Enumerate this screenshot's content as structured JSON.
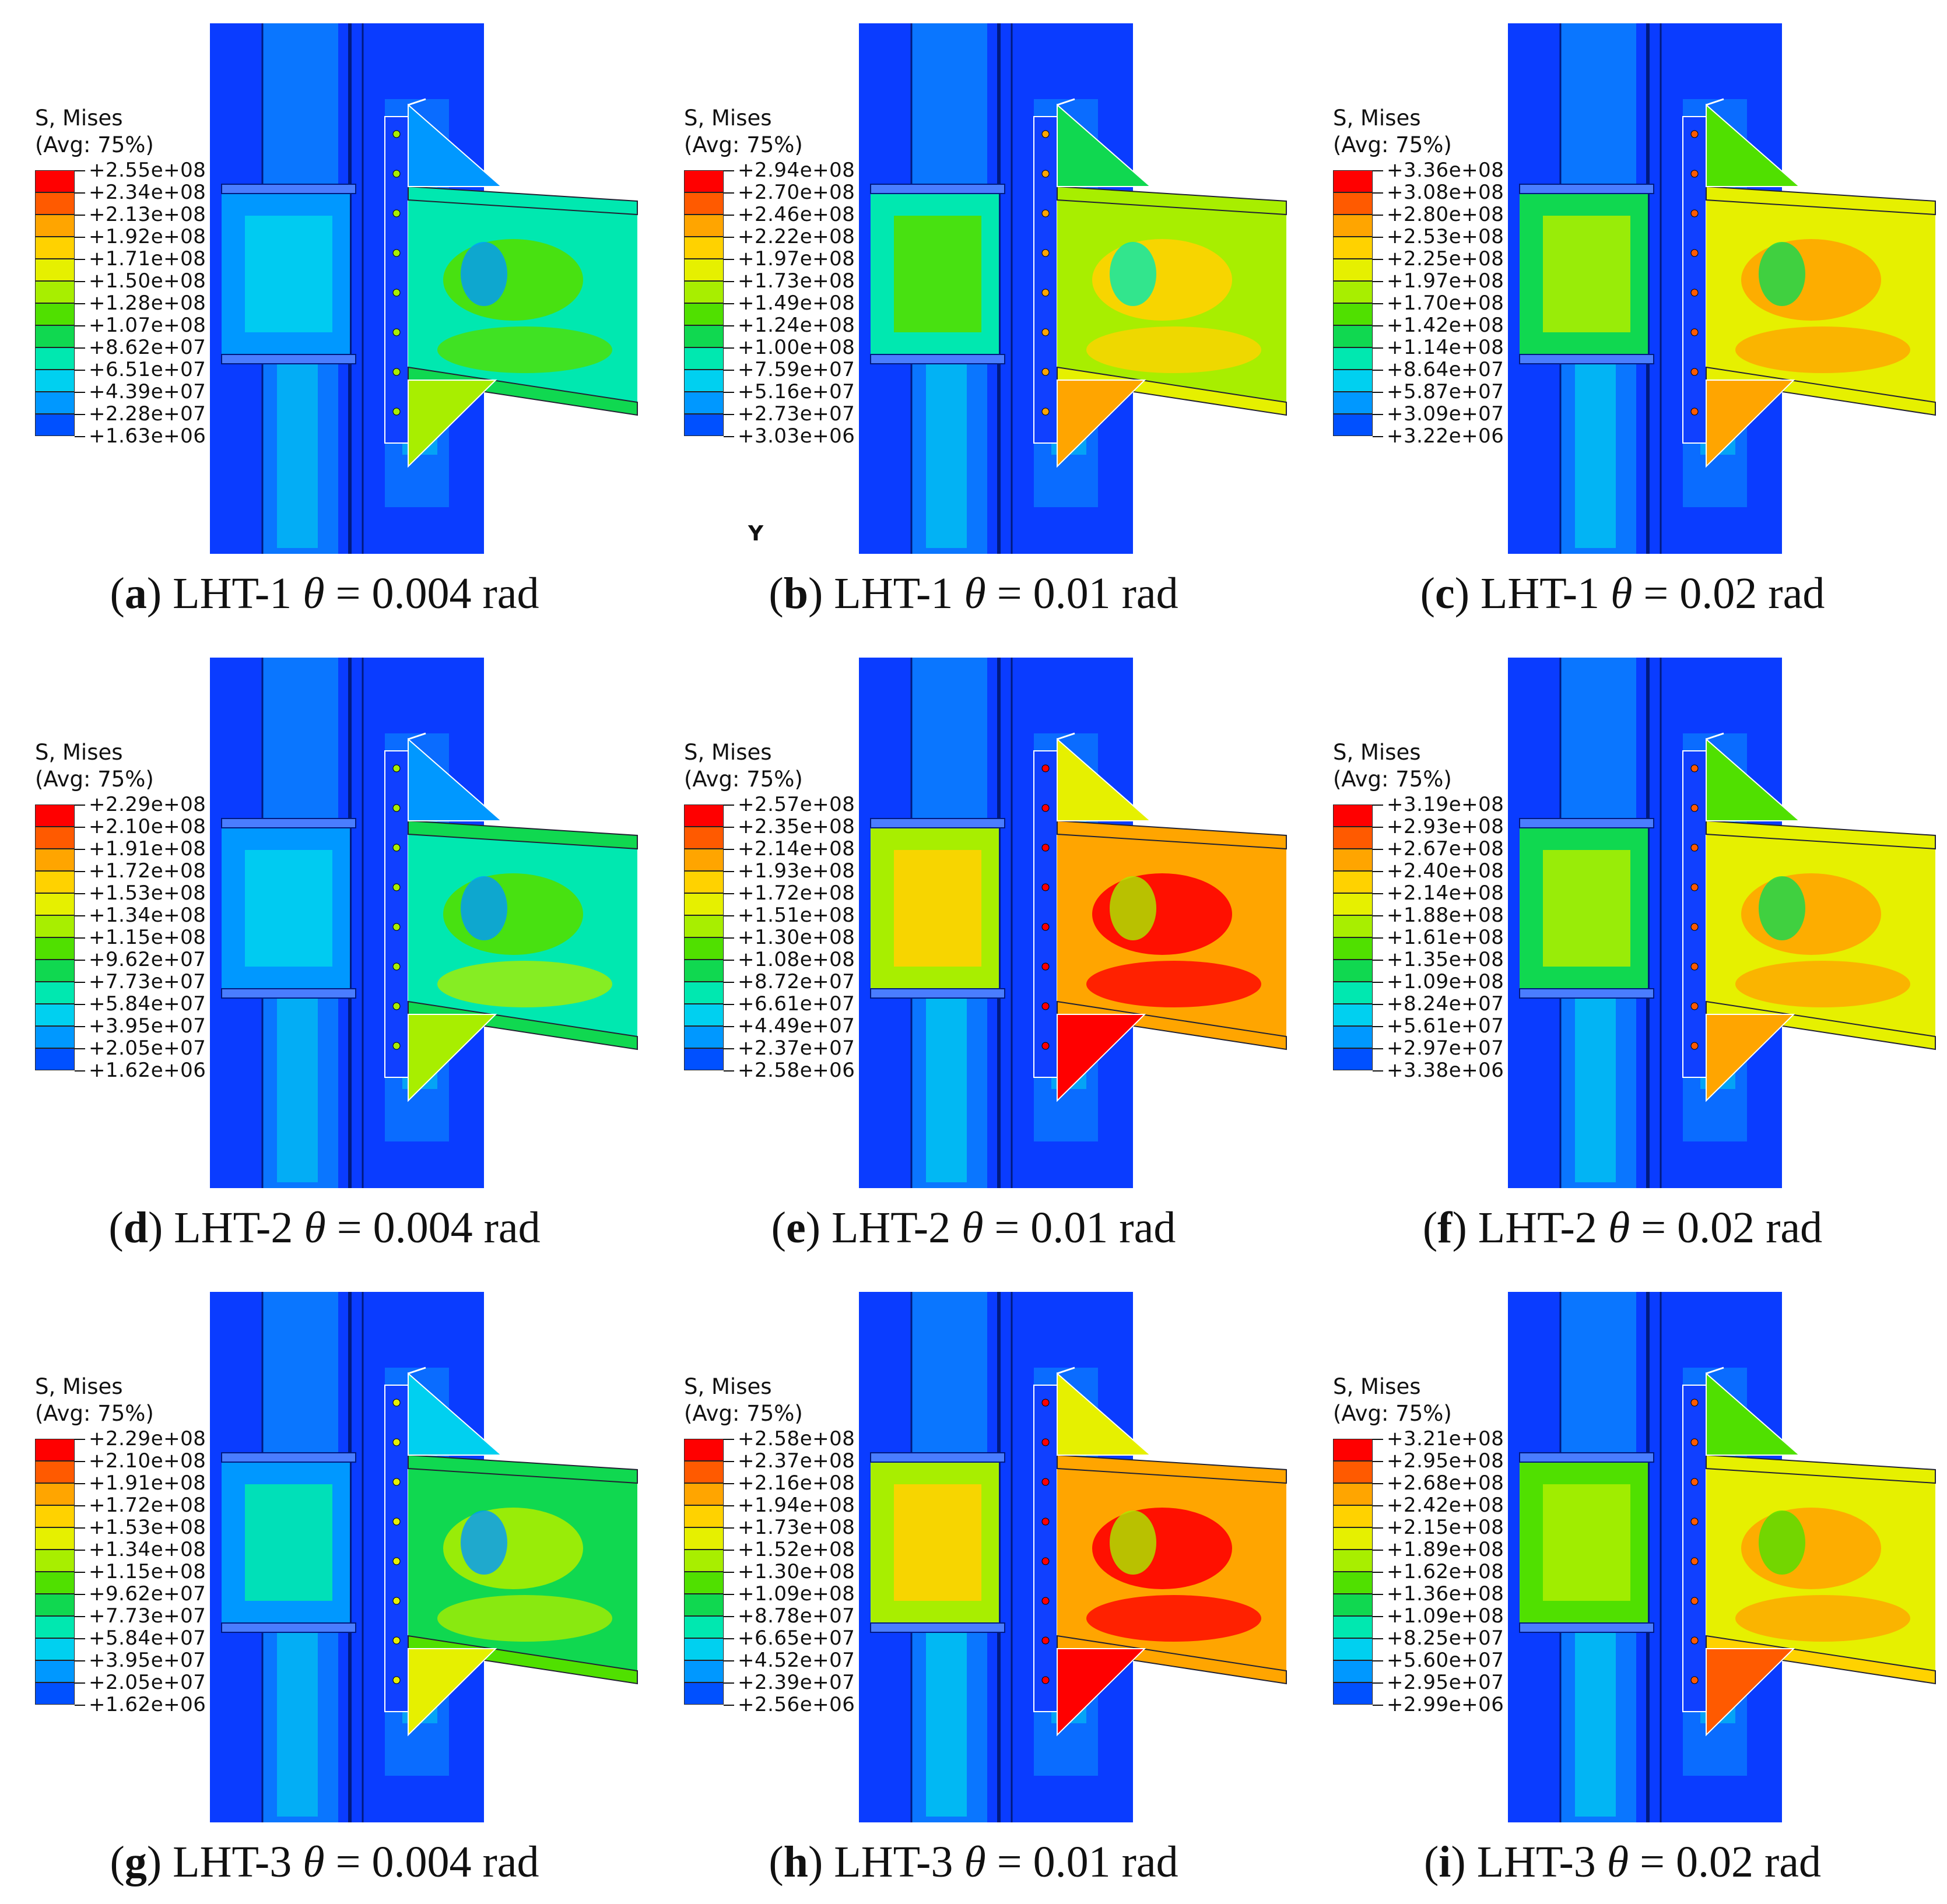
{
  "figure": {
    "panels": [
      {
        "label": "a",
        "specimen": "LHT-1",
        "theta_symbol": "θ",
        "equals": "=",
        "theta_value": "0.004",
        "unit": "rad",
        "legend": {
          "title": "S, Mises",
          "avg": "(Avg: 75%)",
          "values": [
            "+2.55e+08",
            "+2.34e+08",
            "+2.13e+08",
            "+1.92e+08",
            "+1.71e+08",
            "+1.50e+08",
            "+1.28e+08",
            "+1.07e+08",
            "+8.62e+07",
            "+6.51e+07",
            "+4.39e+07",
            "+2.28e+07",
            "+1.63e+06"
          ]
        },
        "beam_level": 0.38,
        "axis_glyph": ""
      },
      {
        "label": "b",
        "specimen": "LHT-1",
        "theta_symbol": "θ",
        "equals": "=",
        "theta_value": "0.01",
        "unit": "rad",
        "legend": {
          "title": "S, Mises",
          "avg": "(Avg: 75%)",
          "values": [
            "+2.94e+08",
            "+2.70e+08",
            "+2.46e+08",
            "+2.22e+08",
            "+1.97e+08",
            "+1.73e+08",
            "+1.49e+08",
            "+1.24e+08",
            "+1.00e+08",
            "+7.59e+07",
            "+5.16e+07",
            "+2.73e+07",
            "+3.03e+06"
          ]
        },
        "beam_level": 0.62,
        "axis_glyph": "Y"
      },
      {
        "label": "c",
        "specimen": "LHT-1",
        "theta_symbol": "θ",
        "equals": "=",
        "theta_value": "0.02",
        "unit": "rad",
        "legend": {
          "title": "S, Mises",
          "avg": "(Avg: 75%)",
          "values": [
            "+3.36e+08",
            "+3.08e+08",
            "+2.80e+08",
            "+2.53e+08",
            "+2.25e+08",
            "+1.97e+08",
            "+1.70e+08",
            "+1.42e+08",
            "+1.14e+08",
            "+8.64e+07",
            "+5.87e+07",
            "+3.09e+07",
            "+3.22e+06"
          ]
        },
        "beam_level": 0.68,
        "axis_glyph": ""
      },
      {
        "label": "d",
        "specimen": "LHT-2",
        "theta_symbol": "θ",
        "equals": "=",
        "theta_value": "0.004",
        "unit": "rad",
        "legend": {
          "title": "S, Mises",
          "avg": "(Avg: 75%)",
          "values": [
            "+2.29e+08",
            "+2.10e+08",
            "+1.91e+08",
            "+1.72e+08",
            "+1.53e+08",
            "+1.34e+08",
            "+1.15e+08",
            "+9.62e+07",
            "+7.73e+07",
            "+5.84e+07",
            "+3.95e+07",
            "+2.05e+07",
            "+1.62e+06"
          ]
        },
        "beam_level": 0.4,
        "axis_glyph": ""
      },
      {
        "label": "e",
        "specimen": "LHT-2",
        "theta_symbol": "θ",
        "equals": "=",
        "theta_value": "0.01",
        "unit": "rad",
        "legend": {
          "title": "S, Mises",
          "avg": "(Avg: 75%)",
          "values": [
            "+2.57e+08",
            "+2.35e+08",
            "+2.14e+08",
            "+1.93e+08",
            "+1.72e+08",
            "+1.51e+08",
            "+1.30e+08",
            "+1.08e+08",
            "+8.72e+07",
            "+6.61e+07",
            "+4.49e+07",
            "+2.37e+07",
            "+2.58e+06"
          ]
        },
        "beam_level": 0.85,
        "axis_glyph": ""
      },
      {
        "label": "f",
        "specimen": "LHT-2",
        "theta_symbol": "θ",
        "equals": "=",
        "theta_value": "0.02",
        "unit": "rad",
        "legend": {
          "title": "S, Mises",
          "avg": "(Avg: 75%)",
          "values": [
            "+3.19e+08",
            "+2.93e+08",
            "+2.67e+08",
            "+2.40e+08",
            "+2.14e+08",
            "+1.88e+08",
            "+1.61e+08",
            "+1.35e+08",
            "+1.09e+08",
            "+8.24e+07",
            "+5.61e+07",
            "+2.97e+07",
            "+3.38e+06"
          ]
        },
        "beam_level": 0.68,
        "axis_glyph": ""
      },
      {
        "label": "g",
        "specimen": "LHT-3",
        "theta_symbol": "θ",
        "equals": "=",
        "theta_value": "0.004",
        "unit": "rad",
        "legend": {
          "title": "S, Mises",
          "avg": "(Avg: 75%)",
          "values": [
            "+2.29e+08",
            "+2.10e+08",
            "+1.91e+08",
            "+1.72e+08",
            "+1.53e+08",
            "+1.34e+08",
            "+1.15e+08",
            "+9.62e+07",
            "+7.73e+07",
            "+5.84e+07",
            "+3.95e+07",
            "+2.05e+07",
            "+1.62e+06"
          ]
        },
        "beam_level": 0.45,
        "axis_glyph": ""
      },
      {
        "label": "h",
        "specimen": "LHT-3",
        "theta_symbol": "θ",
        "equals": "=",
        "theta_value": "0.01",
        "unit": "rad",
        "legend": {
          "title": "S, Mises",
          "avg": "(Avg: 75%)",
          "values": [
            "+2.58e+08",
            "+2.37e+08",
            "+2.16e+08",
            "+1.94e+08",
            "+1.73e+08",
            "+1.52e+08",
            "+1.30e+08",
            "+1.09e+08",
            "+8.78e+07",
            "+6.65e+07",
            "+4.52e+07",
            "+2.39e+07",
            "+2.56e+06"
          ]
        },
        "beam_level": 0.85,
        "axis_glyph": ""
      },
      {
        "label": "i",
        "specimen": "LHT-3",
        "theta_symbol": "θ",
        "equals": "=",
        "theta_value": "0.02",
        "unit": "rad",
        "legend": {
          "title": "S, Mises",
          "avg": "(Avg: 75%)",
          "values": [
            "+3.21e+08",
            "+2.95e+08",
            "+2.68e+08",
            "+2.42e+08",
            "+2.15e+08",
            "+1.89e+08",
            "+1.62e+08",
            "+1.36e+08",
            "+1.09e+08",
            "+8.25e+07",
            "+5.60e+07",
            "+2.95e+07",
            "+2.99e+06"
          ]
        },
        "beam_level": 0.72,
        "axis_glyph": ""
      }
    ],
    "legend_colors": [
      "#ff0000",
      "#ff5a00",
      "#ffa500",
      "#ffd200",
      "#e6f000",
      "#a8ee00",
      "#50e000",
      "#10d850",
      "#00e8b0",
      "#00d0f0",
      "#0098ff",
      "#0050ff",
      "#0000ff"
    ]
  }
}
